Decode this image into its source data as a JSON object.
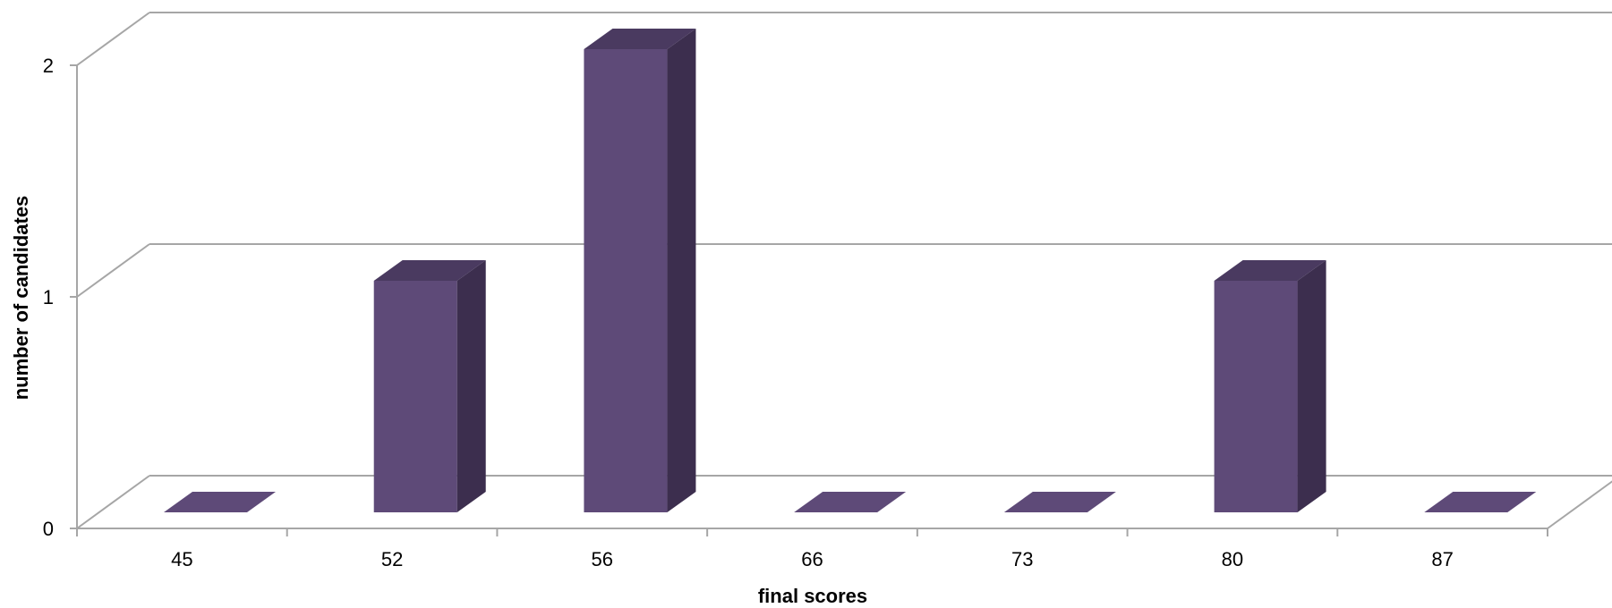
{
  "chart_data": {
    "type": "bar",
    "title": "",
    "xlabel": "final scores",
    "ylabel": "number of candidates",
    "categories": [
      "45",
      "52",
      "56",
      "66",
      "73",
      "80",
      "87"
    ],
    "values": [
      0,
      1,
      2,
      0,
      0,
      1,
      0
    ],
    "ylim": [
      0,
      2
    ],
    "yticks": [
      "0",
      "1",
      "2"
    ],
    "grid": true,
    "legend": "none",
    "style": "3d-column",
    "colors": {
      "front": "#5e4a78",
      "top": "#4a3a60",
      "side": "#3c2e4e",
      "grid": "#a6a6a6"
    }
  }
}
